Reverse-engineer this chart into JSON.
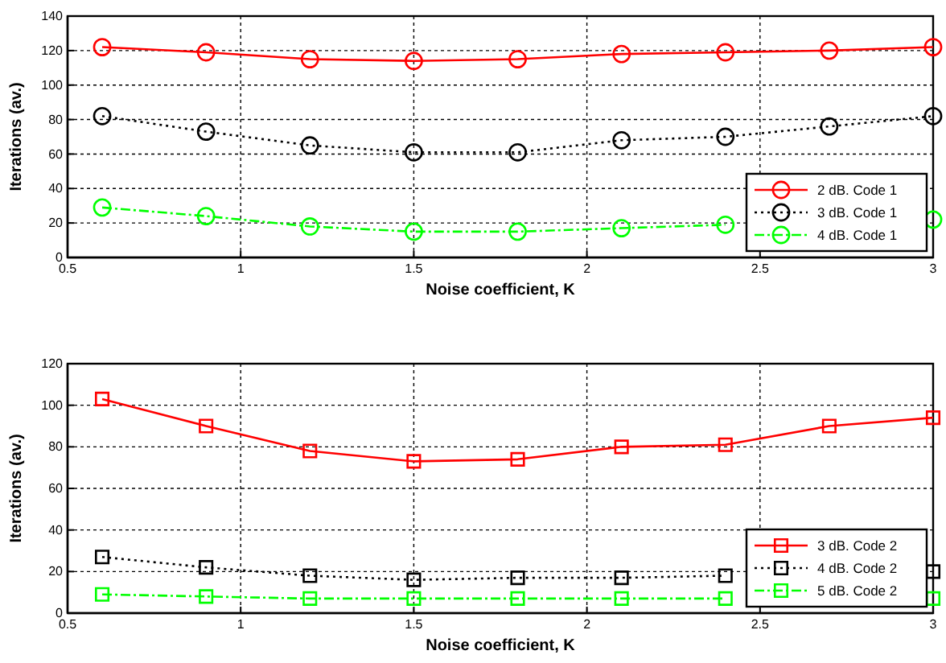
{
  "chart_data": [
    {
      "type": "line",
      "xlabel": "Noise coefficient, K",
      "ylabel": "Iterations (av.)",
      "x": [
        0.6,
        0.9,
        1.2,
        1.5,
        1.8,
        2.1,
        2.4,
        2.7,
        3.0
      ],
      "xlim": [
        0.5,
        3
      ],
      "xticks": [
        0.5,
        1,
        1.5,
        2,
        2.5,
        3
      ],
      "ylim": [
        0,
        140
      ],
      "yticks": [
        0,
        20,
        40,
        60,
        80,
        100,
        120,
        140
      ],
      "grid": true,
      "legend": "bottom right",
      "marker": "circle",
      "series": [
        {
          "name": "2 dB. Code 1",
          "color": "#ff0000",
          "line_style": "solid",
          "values": [
            122,
            119,
            115,
            114,
            115,
            118,
            119,
            120,
            122
          ]
        },
        {
          "name": "3 dB. Code 1",
          "color": "#000000",
          "line_style": "dotted",
          "values": [
            82,
            73,
            65,
            61,
            61,
            68,
            70,
            76,
            82
          ]
        },
        {
          "name": "4 dB. Code 1",
          "color": "#00ff00",
          "line_style": "dashed",
          "values": [
            29,
            24,
            18,
            15,
            15,
            17,
            19,
            null,
            22
          ]
        }
      ]
    },
    {
      "type": "line",
      "xlabel": "Noise coefficient, K",
      "ylabel": "Iterations (av.)",
      "x": [
        0.6,
        0.9,
        1.2,
        1.5,
        1.8,
        2.1,
        2.4,
        2.7,
        3.0
      ],
      "xlim": [
        0.5,
        3
      ],
      "xticks": [
        0.5,
        1,
        1.5,
        2,
        2.5,
        3
      ],
      "ylim": [
        0,
        120
      ],
      "yticks": [
        0,
        20,
        40,
        60,
        80,
        100,
        120
      ],
      "grid": true,
      "legend": "bottom right",
      "marker": "square",
      "series": [
        {
          "name": "3 dB. Code 2",
          "color": "#ff0000",
          "line_style": "solid",
          "values": [
            103,
            90,
            78,
            73,
            74,
            80,
            81,
            90,
            94
          ]
        },
        {
          "name": "4 dB. Code 2",
          "color": "#000000",
          "line_style": "dotted",
          "values": [
            27,
            22,
            18,
            16,
            17,
            17,
            18,
            null,
            20
          ]
        },
        {
          "name": "5 dB. Code 2",
          "color": "#00ff00",
          "line_style": "dashed",
          "values": [
            9,
            8,
            7,
            7,
            7,
            7,
            7,
            null,
            7
          ]
        }
      ]
    }
  ]
}
